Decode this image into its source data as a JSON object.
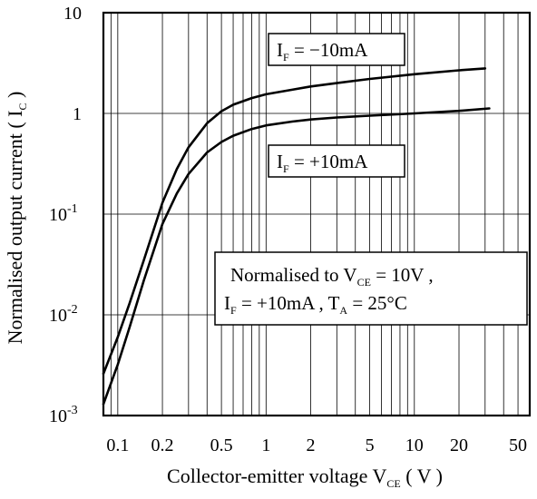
{
  "chart_data": {
    "type": "line",
    "xlabel": {
      "text": "Collector-emitter voltage V",
      "sub": "CE",
      "unit": " ( V )"
    },
    "ylabel": {
      "text": "Normalised output current ( I",
      "sub": "C",
      "close": " )"
    },
    "x_scale": "log",
    "y_scale": "log",
    "xlim": [
      0.08,
      60
    ],
    "ylim": [
      0.001,
      10
    ],
    "grid": true,
    "x_ticks": [
      {
        "value": 0.1,
        "label": "0.1"
      },
      {
        "value": 0.2,
        "label": "0.2"
      },
      {
        "value": 0.5,
        "label": "0.5"
      },
      {
        "value": 1,
        "label": "1"
      },
      {
        "value": 2,
        "label": "2"
      },
      {
        "value": 5,
        "label": "5"
      },
      {
        "value": 10,
        "label": "10"
      },
      {
        "value": 20,
        "label": "20"
      },
      {
        "value": 50,
        "label": "50"
      }
    ],
    "y_ticks": [
      {
        "value": 10,
        "base": "10",
        "exp": ""
      },
      {
        "value": 1,
        "base": "1",
        "exp": ""
      },
      {
        "value": 0.1,
        "base": "10",
        "exp": "-1"
      },
      {
        "value": 0.01,
        "base": "10",
        "exp": "-2"
      },
      {
        "value": 0.001,
        "base": "10",
        "exp": "-3"
      }
    ],
    "series": [
      {
        "name_main": "I",
        "name_sub": "F",
        "name_rest": " = −10mA",
        "x": [
          0.08,
          0.1,
          0.12,
          0.15,
          0.2,
          0.25,
          0.3,
          0.4,
          0.5,
          0.6,
          0.8,
          1,
          1.5,
          2,
          3,
          5,
          10,
          20,
          30
        ],
        "y": [
          0.0026,
          0.006,
          0.013,
          0.035,
          0.13,
          0.28,
          0.46,
          0.8,
          1.05,
          1.22,
          1.42,
          1.55,
          1.72,
          1.85,
          2.0,
          2.2,
          2.45,
          2.68,
          2.8
        ]
      },
      {
        "name_main": "I",
        "name_sub": "F",
        "name_rest": " = +10mA",
        "x": [
          0.08,
          0.1,
          0.12,
          0.15,
          0.2,
          0.25,
          0.3,
          0.4,
          0.5,
          0.6,
          0.8,
          1,
          1.5,
          2,
          3,
          5,
          10,
          20,
          32
        ],
        "y": [
          0.0013,
          0.0032,
          0.0075,
          0.022,
          0.08,
          0.16,
          0.25,
          0.41,
          0.52,
          0.6,
          0.7,
          0.76,
          0.83,
          0.87,
          0.91,
          0.95,
          1.0,
          1.06,
          1.12
        ]
      }
    ],
    "annotation": {
      "line1_a": "Normalised to V",
      "line1_sub": "CE",
      "line1_b": " = 10V ,",
      "line2_a": "I",
      "line2_sub1": "F",
      "line2_b": " = +10mA , T",
      "line2_sub2": "A",
      "line2_c": " = 25°C"
    }
  }
}
